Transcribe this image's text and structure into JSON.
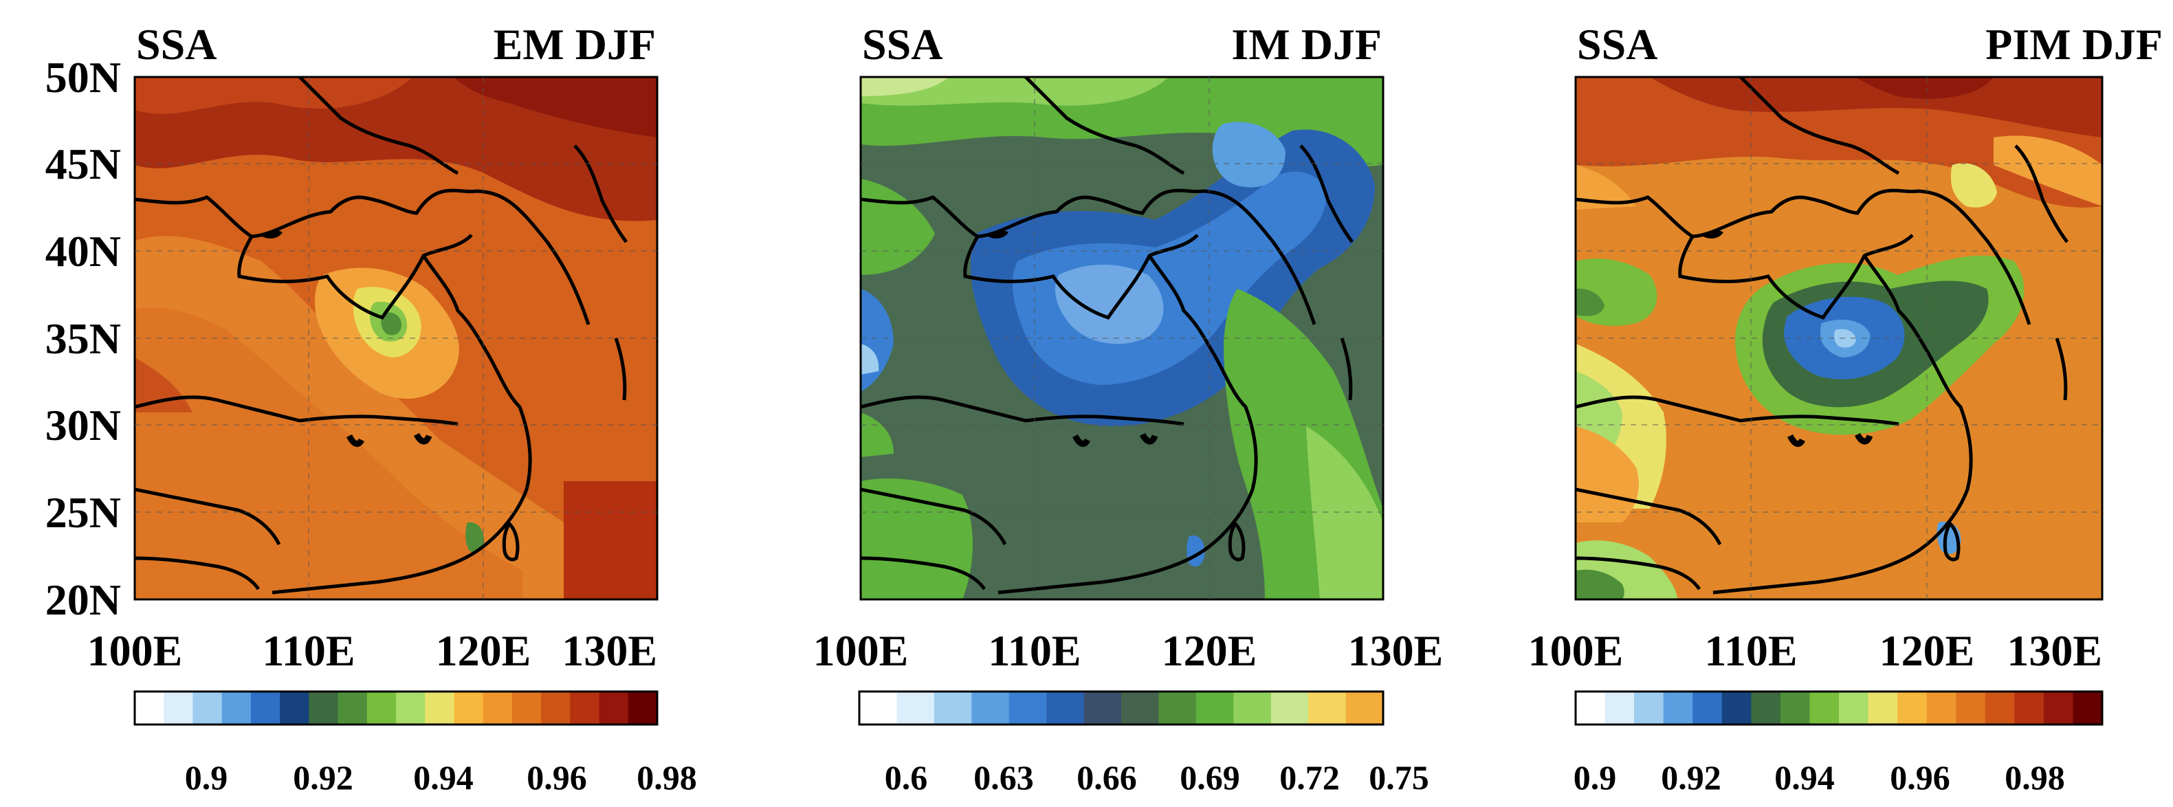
{
  "figure": {
    "y_tick_labels": [
      "50N",
      "45N",
      "40N",
      "35N",
      "30N",
      "25N",
      "20N"
    ],
    "panels": [
      {
        "id": "em",
        "title_left": "SSA",
        "title_right": "EM DJF",
        "x_tick_labels": [
          "100E",
          "110E",
          "120E",
          "130E"
        ],
        "colorbar": {
          "tick_labels": [
            "0.9",
            "0.92",
            "0.94",
            "0.96",
            "0.98"
          ],
          "colors": [
            "#ffffff",
            "#dbeefb",
            "#9fcdf0",
            "#5a9fe0",
            "#2f6fc4",
            "#17427e",
            "#3d6b3f",
            "#4f8f3a",
            "#78bd3c",
            "#a9dc6a",
            "#e9e26a",
            "#f7b83e",
            "#f0962e",
            "#e0761f",
            "#cf5517",
            "#b73210",
            "#94160c",
            "#650000"
          ]
        },
        "value_range": [
          0.885,
          0.99
        ],
        "dominant_color": "#d1621c"
      },
      {
        "id": "im",
        "title_left": "SSA",
        "title_right": "IM DJF",
        "x_tick_labels": [
          "100E",
          "110E",
          "120E",
          "130E"
        ],
        "colorbar": {
          "tick_labels": [
            "0.6",
            "0.63",
            "0.66",
            "0.69",
            "0.72",
            "0.75"
          ],
          "colors": [
            "#ffffff",
            "#dbeefb",
            "#9fcdf0",
            "#5a9fe0",
            "#3a7fd2",
            "#2a62b2",
            "#3a4f6a",
            "#44634c",
            "#4f8f3a",
            "#5fb23c",
            "#8fd15a",
            "#c9e690",
            "#f5d560",
            "#f2ad3a"
          ]
        },
        "value_range": [
          0.58,
          0.76
        ],
        "dominant_color": "#4a6b51"
      },
      {
        "id": "pim",
        "title_left": "SSA",
        "title_right": "PIM DJF",
        "x_tick_labels": [
          "100E",
          "110E",
          "120E",
          "130E"
        ],
        "colorbar": {
          "tick_labels": [
            "0.9",
            "0.92",
            "0.94",
            "0.96",
            "0.98"
          ],
          "colors": [
            "#ffffff",
            "#dbeefb",
            "#9fcdf0",
            "#5a9fe0",
            "#2f6fc4",
            "#17427e",
            "#3d6b3f",
            "#4f8f3a",
            "#78bd3c",
            "#a9dc6a",
            "#e9e26a",
            "#f7b83e",
            "#f0962e",
            "#e0761f",
            "#cf5517",
            "#b73210",
            "#94160c",
            "#650000"
          ]
        },
        "value_range": [
          0.885,
          0.99
        ],
        "dominant_color": "#e1872a"
      }
    ]
  }
}
